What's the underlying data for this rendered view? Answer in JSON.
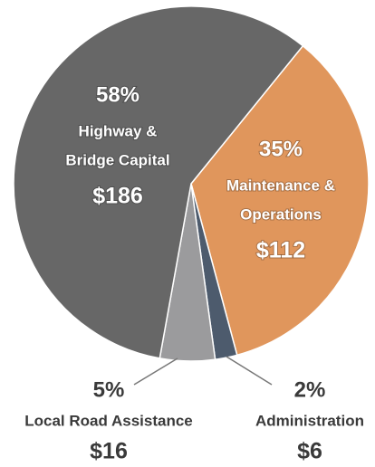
{
  "chart_data": {
    "type": "pie",
    "categories": [
      [
        "Maintenance &",
        "Operations"
      ],
      [
        "Administration"
      ],
      [
        "Local Road Assistance"
      ],
      [
        "Highway &",
        "Bridge Capital"
      ]
    ],
    "values": [
      35,
      2,
      5,
      58
    ],
    "value_labels": [
      "35%",
      "2%",
      "5%",
      "58%"
    ],
    "amounts": [
      "$112",
      "$6",
      "$16",
      "$186"
    ],
    "colors": [
      "#e0965c",
      "#4d5b6d",
      "#9b9b9d",
      "#676767"
    ]
  }
}
